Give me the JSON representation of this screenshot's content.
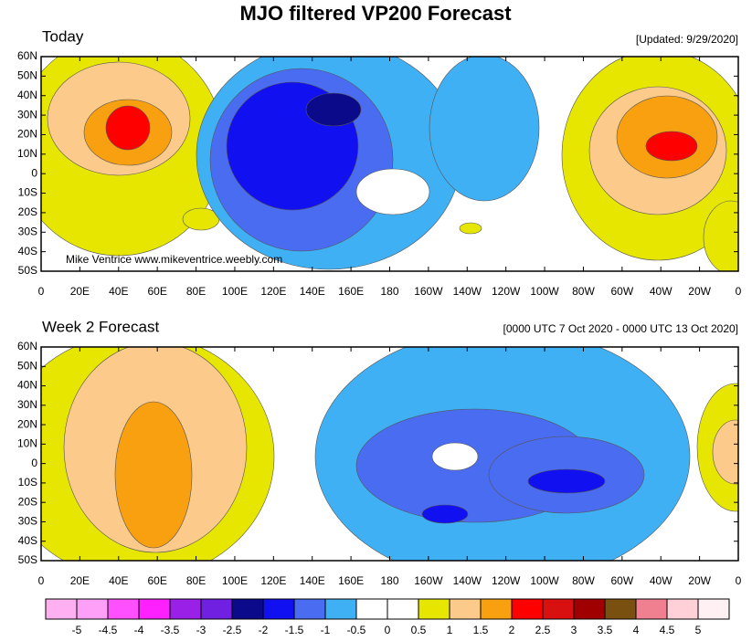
{
  "title": "MJO filtered VP200 Forecast",
  "panels": [
    {
      "title": "Today",
      "subtitle": "[Updated: 9/29/2020]",
      "credit": "Mike Ventrice www.mikeventrice.weebly.com"
    },
    {
      "title": "Week 2 Forecast",
      "subtitle": "[0000 UTC 7 Oct 2020 - 0000 UTC 13 Oct 2020]"
    }
  ],
  "lat_labels": [
    "60N",
    "50N",
    "40N",
    "30N",
    "20N",
    "10N",
    "0",
    "10S",
    "20S",
    "30S",
    "40S",
    "50S"
  ],
  "lon_labels": [
    "0",
    "20E",
    "40E",
    "60E",
    "80E",
    "100E",
    "120E",
    "140E",
    "160E",
    "180",
    "160W",
    "140W",
    "120W",
    "100W",
    "80W",
    "60W",
    "40W",
    "20W",
    "0"
  ],
  "colorbar": {
    "colors": [
      "#ffb0f0",
      "#ffa0f8",
      "#ff50ff",
      "#ff20ff",
      "#9a20e8",
      "#7020e0",
      "#0a0a8a",
      "#1010f0",
      "#4a6cf0",
      "#40b0f4",
      "#ffffff",
      "#ffffff",
      "#e6e600",
      "#fcca8a",
      "#f8a010",
      "#ff0000",
      "#d81010",
      "#a00000",
      "#7a5010",
      "#f08090",
      "#ffd0d8",
      "#fff0f4"
    ],
    "labels": [
      "-5",
      "-4.5",
      "-4",
      "-3.5",
      "-3",
      "-2.5",
      "-2",
      "-1.5",
      "-1",
      "-0.5",
      "0",
      "0.5",
      "1",
      "1.5",
      "2",
      "2.5",
      "3",
      "3.5",
      "4",
      "4.5",
      "5"
    ]
  }
}
